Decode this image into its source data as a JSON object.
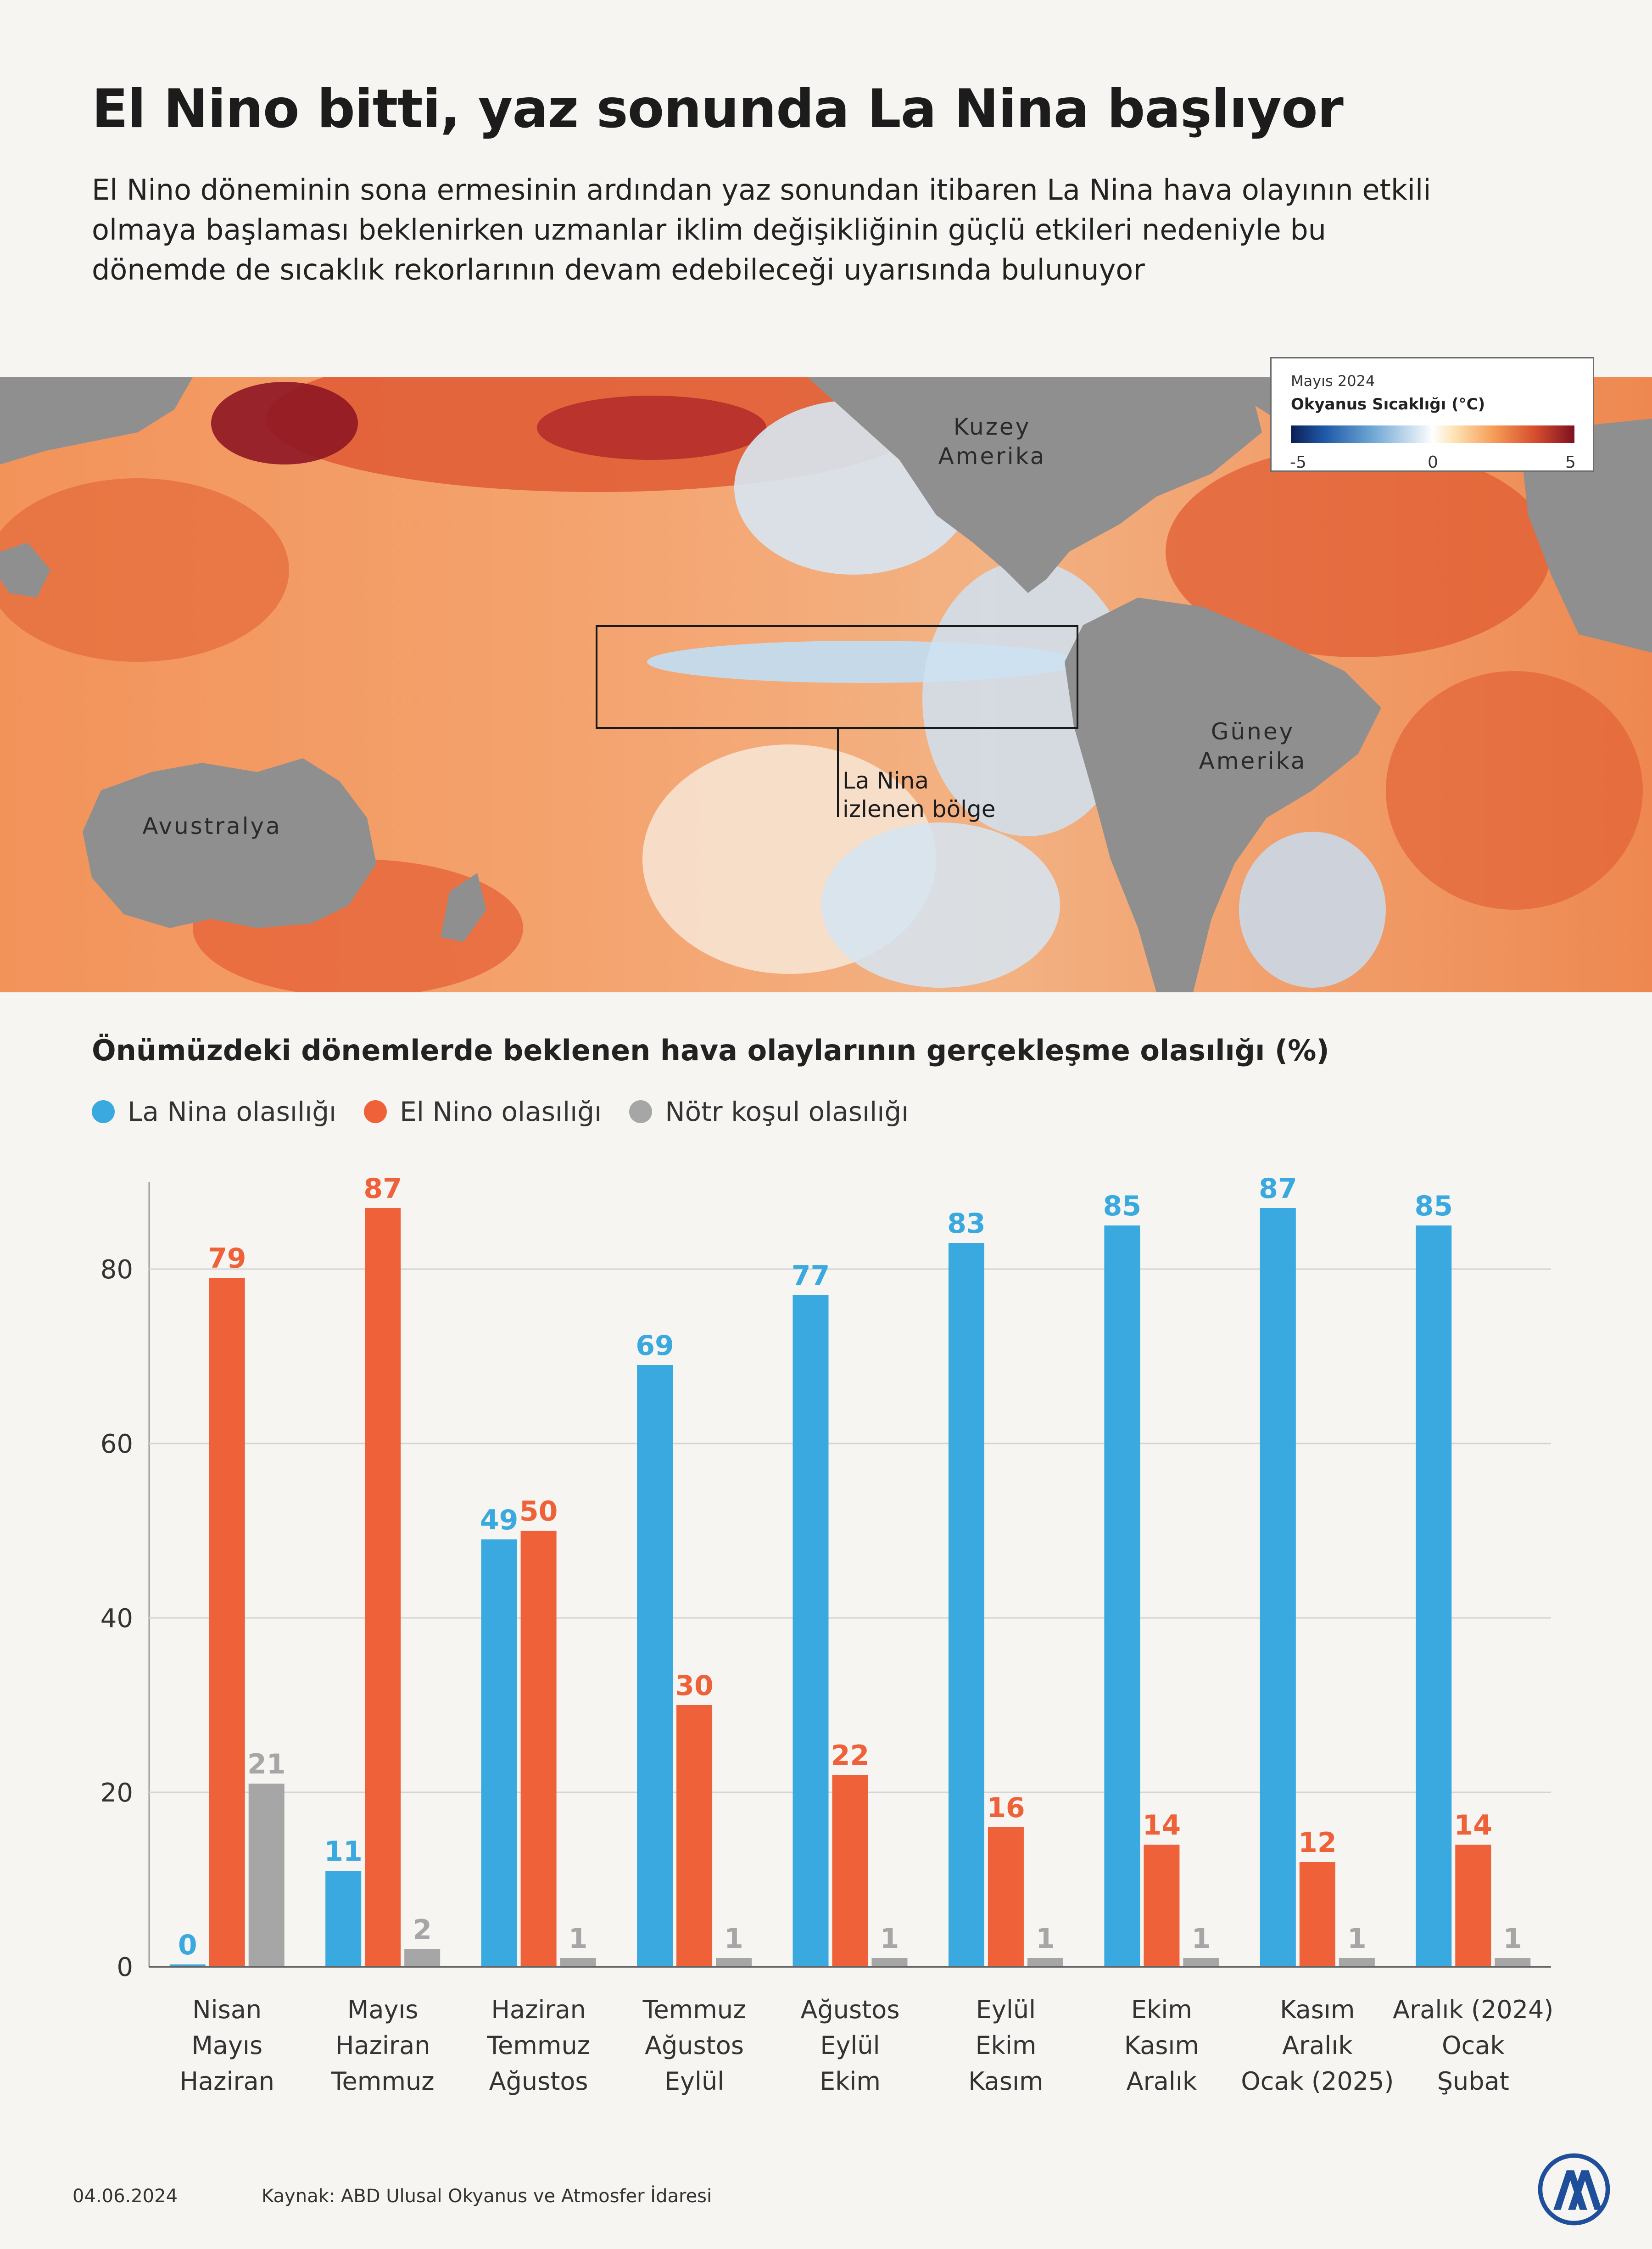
{
  "header": {
    "title": "El Nino bitti, yaz sonunda La Nina başlıyor",
    "subtitle": "El Nino döneminin sona ermesinin ardından yaz sonundan itibaren La Nina hava olayının etkili olmaya başlaması beklenirken uzmanlar iklim değişikliğinin güçlü etkileri nedeniyle bu dönemde de sıcaklık rekorlarının devam edebileceği uyarısında bulunuyor"
  },
  "map": {
    "labels": {
      "north_america": "Kuzey\nAmerika",
      "south_america": "Güney\nAmerika",
      "australia": "Avustralya",
      "monitored_region": "La Nina\nizlenen bölge"
    },
    "legend": {
      "month": "Mayıs 2024",
      "title": "Okyanus Sıcaklığı (°C)",
      "min": "-5",
      "mid": "0",
      "max": "5"
    },
    "colors": {
      "land": "#8f8f8f",
      "warm": "#f0a06a",
      "hot": "#d9482b",
      "cold": "#c3dbee"
    }
  },
  "chart_data": {
    "type": "bar",
    "title": "Önümüzdeki dönemlerde beklenen hava olaylarının gerçekleşme olasılığı (%)",
    "categories": [
      [
        "Nisan",
        "Mayıs",
        "Haziran"
      ],
      [
        "Mayıs",
        "Haziran",
        "Temmuz"
      ],
      [
        "Haziran",
        "Temmuz",
        "Ağustos"
      ],
      [
        "Temmuz",
        "Ağustos",
        "Eylül"
      ],
      [
        "Ağustos",
        "Eylül",
        "Ekim"
      ],
      [
        "Eylül",
        "Ekim",
        "Kasım"
      ],
      [
        "Ekim",
        "Kasım",
        "Aralık"
      ],
      [
        "Kasım",
        "Aralık",
        "Ocak (2025)"
      ],
      [
        "Aralık (2024)",
        "Ocak",
        "Şubat"
      ]
    ],
    "series": [
      {
        "name": "La Nina olasılığı",
        "color": "#3aa9df",
        "values": [
          0,
          11,
          49,
          69,
          77,
          83,
          85,
          87,
          85
        ]
      },
      {
        "name": "El Nino olasılığı",
        "color": "#ee6139",
        "values": [
          79,
          87,
          50,
          30,
          22,
          16,
          14,
          12,
          14
        ]
      },
      {
        "name": "Nötr koşul olasılığı",
        "color": "#a6a6a6",
        "values": [
          21,
          2,
          1,
          1,
          1,
          1,
          1,
          1,
          1
        ]
      }
    ],
    "ylim": [
      0,
      90
    ],
    "yticks": [
      0,
      20,
      40,
      60,
      80
    ],
    "grid": true,
    "legend": "top-left"
  },
  "footer": {
    "date": "04.06.2024",
    "source": "Kaynak: ABD Ulusal Okyanus ve Atmosfer İdaresi"
  }
}
